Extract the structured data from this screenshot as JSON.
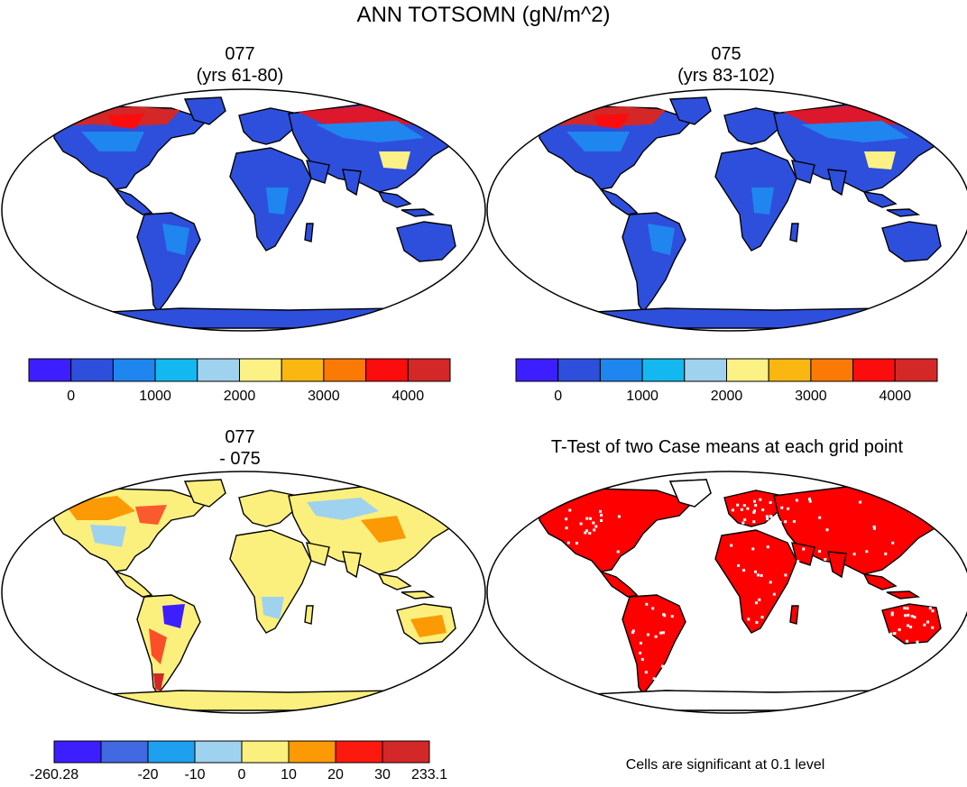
{
  "figure": {
    "title": "ANN TOTSOMN (gN/m^2)"
  },
  "chart_data": [
    {
      "type": "heatmap",
      "panel": "top-left",
      "title_line1": "077",
      "title_line2": "(yrs 61-80)",
      "description_levels": "global map of annual total soil organic matter nitrogen",
      "colorbar": {
        "colors": [
          "#3d1eff",
          "#2e4fdc",
          "#1f86ef",
          "#14b8f1",
          "#9fd2ee",
          "#fbf185",
          "#fbb711",
          "#fb7a05",
          "#fb0d0d",
          "#d42727"
        ],
        "tick_labels": [
          "0",
          "1000",
          "2000",
          "3000",
          "4000"
        ],
        "tick_values": [
          0,
          1000,
          2000,
          3000,
          4000
        ]
      },
      "dominant_class": "0-500",
      "high_values_region": "northern high latitudes (Canada, Siberia)"
    },
    {
      "type": "heatmap",
      "panel": "top-right",
      "title_line1": "075",
      "title_line2": "(yrs 83-102)",
      "colorbar": {
        "colors": [
          "#3d1eff",
          "#2e4fdc",
          "#1f86ef",
          "#14b8f1",
          "#9fd2ee",
          "#fbf185",
          "#fbb711",
          "#fb7a05",
          "#fb0d0d",
          "#d42727"
        ],
        "tick_labels": [
          "0",
          "1000",
          "2000",
          "3000",
          "4000"
        ],
        "tick_values": [
          0,
          1000,
          2000,
          3000,
          4000
        ]
      },
      "dominant_class": "0-500",
      "high_values_region": "northern high latitudes (Canada, Siberia)"
    },
    {
      "type": "heatmap",
      "panel": "bottom-left",
      "title_line1": "077",
      "title_line2": "- 075",
      "colorbar": {
        "colors": [
          "#3d1eff",
          "#4169e1",
          "#1ea0f0",
          "#9fd2ee",
          "#fbf07d",
          "#fb9a05",
          "#fb1a0d",
          "#d42727"
        ],
        "tick_labels": [
          "-260.28",
          "-20",
          "-10",
          "0",
          "10",
          "20",
          "30",
          "233.1"
        ],
        "tick_values": [
          -260.28,
          -20,
          -10,
          0,
          10,
          20,
          30,
          233.1
        ]
      },
      "dominant_class": "0 to 10"
    },
    {
      "type": "heatmap",
      "panel": "bottom-right",
      "title": "T-Test of two Case means at each grid point",
      "footnote": "Cells are significant at 0.1 level",
      "significant_color": "#ff0000"
    }
  ]
}
